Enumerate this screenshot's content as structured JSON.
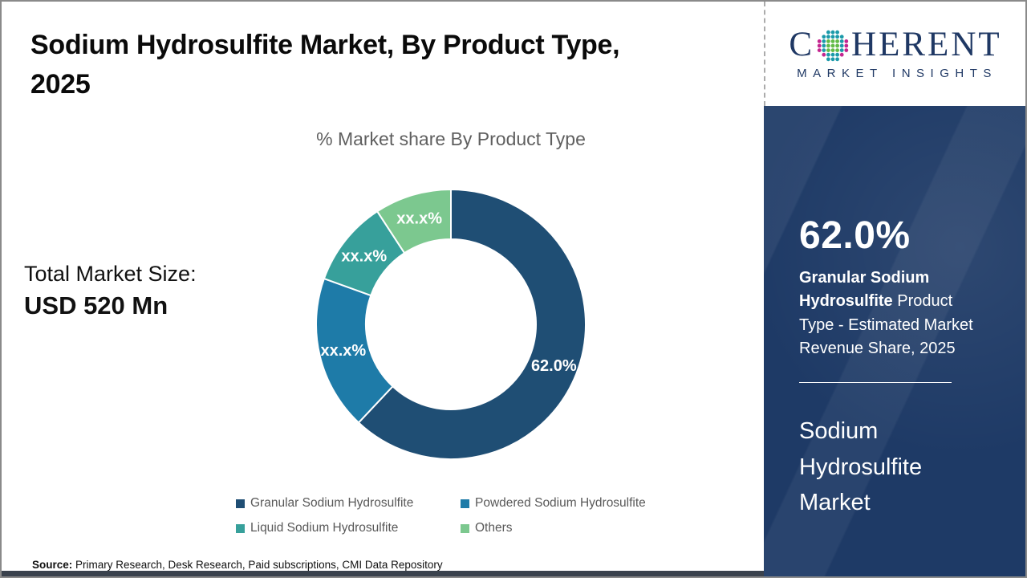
{
  "page": {
    "title": "Sodium Hydrosulfite Market, By Product Type,\n2025",
    "source_label": "Source:",
    "source_text": " Primary Research, Desk Research, Paid subscriptions, CMI Data Repository"
  },
  "market_size": {
    "label": "Total Market Size:",
    "value": "USD 520 Mn"
  },
  "logo": {
    "word_start": "C",
    "word_end": "HERENT",
    "tagline": "MARKET INSIGHTS",
    "brand_navy": "#1f3864",
    "dot_teal": "#1b9aaa",
    "dot_green": "#62bb46",
    "dot_magenta": "#c4258f"
  },
  "sidebar": {
    "stat_value": "62.0%",
    "stat_desc_bold": "Granular Sodium Hydrosulfite",
    "stat_desc_rest": "  Product Type - Estimated Market Revenue Share, 2025",
    "market_name": "Sodium\nHydrosulfite\nMarket",
    "background_color": "#1e3a66"
  },
  "chart_data": {
    "type": "pie",
    "subtype": "donut",
    "title": "% Market share By Product Type",
    "start_angle_deg": 0,
    "direction": "clockwise",
    "inner_radius_ratio": 0.63,
    "legend_position": "bottom",
    "series": [
      {
        "name": "Granular Sodium Hydrosulfite",
        "value": 62.0,
        "label": "62.0%",
        "color": "#1f4e74"
      },
      {
        "name": "Powdered Sodium Hydrosulfite",
        "value": 18.5,
        "label": "xx.x%",
        "color": "#1e7ba8"
      },
      {
        "name": "Liquid Sodium Hydrosulfite",
        "value": 10.3,
        "label": "xx.x%",
        "color": "#37a09b"
      },
      {
        "name": "Others",
        "value": 9.2,
        "label": "xx.x%",
        "color": "#7cc88f"
      }
    ]
  },
  "colors": {
    "text_gray": "#595959",
    "border_gray": "#8a8a8a",
    "bottom_strip": "#3a424d"
  }
}
